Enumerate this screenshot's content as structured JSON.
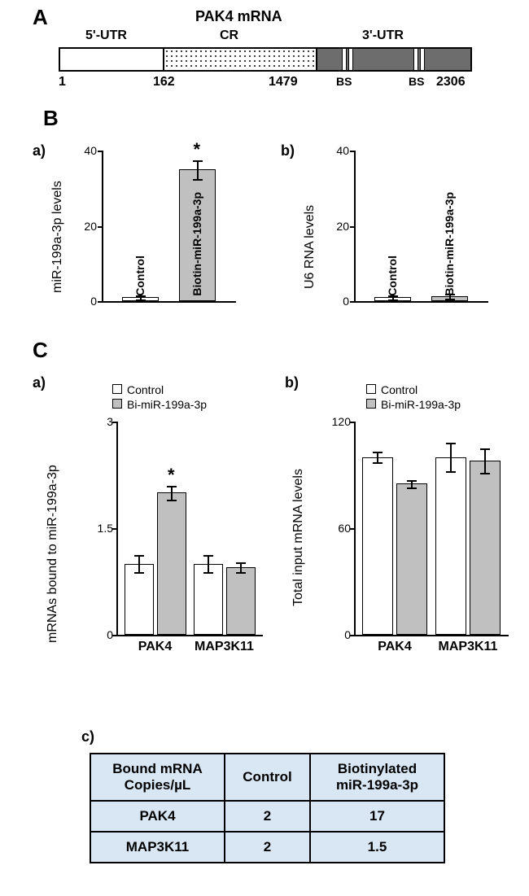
{
  "panelA": {
    "letter": "A",
    "title": "PAK4 mRNA",
    "labels": {
      "utr5": "5'-UTR",
      "cr": "CR",
      "utr3": "3'-UTR",
      "bs": "BS"
    },
    "positions": {
      "start": "1",
      "cr_start": "162",
      "cr_end": "1479",
      "end": "2306"
    },
    "colors": {
      "utr5": "#ffffff",
      "cr_dot": "#000000",
      "utr3": "#6d6d6d",
      "bs": "#ffffff",
      "border": "#000000"
    }
  },
  "panelB": {
    "letter": "B",
    "a": {
      "sub": "a)",
      "ylabel": "miR-199a-3p levels",
      "ymax": 40,
      "ytick_step": 20,
      "categories": [
        "Control",
        "Biotin-miR-199a-3p"
      ],
      "values": [
        1,
        35
      ],
      "errors": [
        0.5,
        2.5
      ],
      "colors": [
        "#ffffff",
        "#c0c0c0"
      ],
      "star_on": 1
    },
    "b": {
      "sub": "b)",
      "ylabel": "U6 RNA levels",
      "ymax": 40,
      "ytick_step": 20,
      "categories": [
        "Control",
        "Biotin-miR-199a-3p"
      ],
      "values": [
        1,
        1.3
      ],
      "errors": [
        0.5,
        0.6
      ],
      "colors": [
        "#ffffff",
        "#c0c0c0"
      ]
    }
  },
  "panelC": {
    "letter": "C",
    "a": {
      "sub": "a)",
      "ylabel": "mRNAs bound to miR-199a-3p",
      "ymax": 3,
      "yticks": [
        0,
        1.5,
        3
      ],
      "groups": [
        "PAK4",
        "MAP3K11"
      ],
      "series": [
        {
          "name": "Control",
          "color": "#ffffff",
          "values": [
            1.0,
            1.0
          ],
          "errors": [
            0.12,
            0.12
          ]
        },
        {
          "name": "Bi-miR-199a-3p",
          "color": "#c0c0c0",
          "values": [
            2.0,
            0.95
          ],
          "errors": [
            0.1,
            0.07
          ]
        }
      ],
      "star_on": {
        "group": 0,
        "series": 1
      }
    },
    "b": {
      "sub": "b)",
      "ylabel": "Total input mRNA levels",
      "ymax": 120,
      "yticks": [
        0,
        60,
        120
      ],
      "groups": [
        "PAK4",
        "MAP3K11"
      ],
      "series": [
        {
          "name": "Control",
          "color": "#ffffff",
          "values": [
            100,
            100
          ],
          "errors": [
            3,
            8
          ]
        },
        {
          "name": "Bi-miR-199a-3p",
          "color": "#c0c0c0",
          "values": [
            85,
            98
          ],
          "errors": [
            2,
            7
          ]
        }
      ]
    },
    "c": {
      "sub": "c)",
      "headers": [
        "Bound mRNA Copies/µL",
        "Control",
        "Biotinylated miR-199a-3p"
      ],
      "rows": [
        [
          "PAK4",
          "2",
          "17"
        ],
        [
          "MAP3K11",
          "2",
          "1.5"
        ]
      ],
      "cell_bg": "#d9e7f5"
    }
  }
}
